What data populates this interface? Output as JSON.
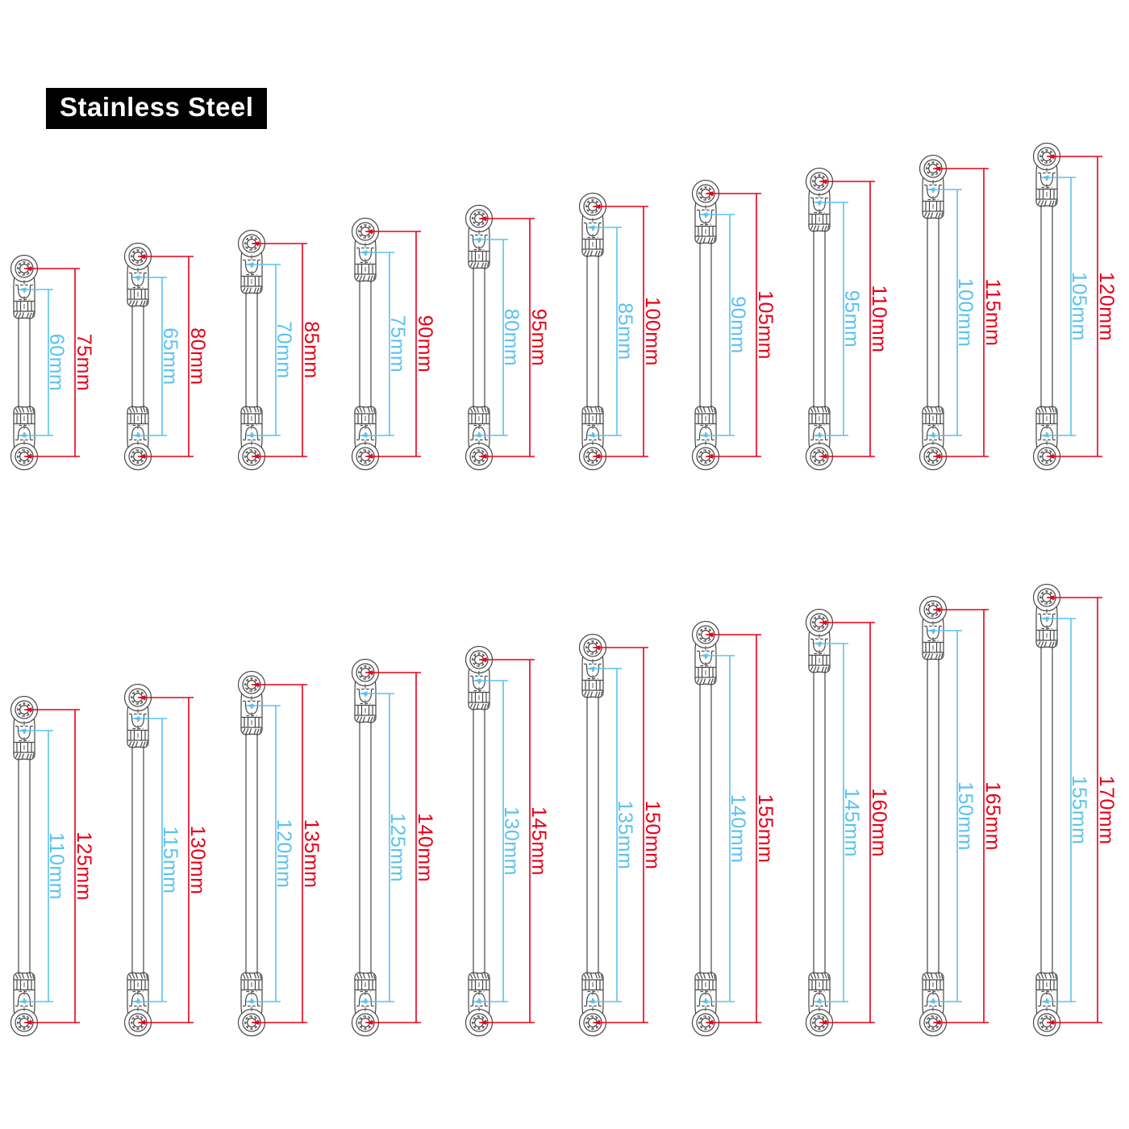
{
  "title": {
    "label": "Stainless Steel"
  },
  "unit": "mm",
  "colors": {
    "outer_dimension": "#e60019",
    "inner_dimension": "#5bc2ee",
    "drawing_line": "#474747",
    "title_bg": "#000000",
    "title_text": "#ffffff"
  },
  "rows": [
    {
      "rods": [
        {
          "outer_mm": 75,
          "inner_mm": 60,
          "outer_label": "75mm",
          "inner_label": "60mm"
        },
        {
          "outer_mm": 80,
          "inner_mm": 65,
          "outer_label": "80mm",
          "inner_label": "65mm"
        },
        {
          "outer_mm": 85,
          "inner_mm": 70,
          "outer_label": "85mm",
          "inner_label": "70mm"
        },
        {
          "outer_mm": 90,
          "inner_mm": 75,
          "outer_label": "90mm",
          "inner_label": "75mm"
        },
        {
          "outer_mm": 95,
          "inner_mm": 80,
          "outer_label": "95mm",
          "inner_label": "80mm"
        },
        {
          "outer_mm": 100,
          "inner_mm": 85,
          "outer_label": "100mm",
          "inner_label": "85mm"
        },
        {
          "outer_mm": 105,
          "inner_mm": 90,
          "outer_label": "105mm",
          "inner_label": "90mm"
        },
        {
          "outer_mm": 110,
          "inner_mm": 95,
          "outer_label": "110mm",
          "inner_label": "95mm"
        },
        {
          "outer_mm": 115,
          "inner_mm": 100,
          "outer_label": "115mm",
          "inner_label": "100mm"
        },
        {
          "outer_mm": 120,
          "inner_mm": 105,
          "outer_label": "120mm",
          "inner_label": "105mm"
        }
      ]
    },
    {
      "rods": [
        {
          "outer_mm": 125,
          "inner_mm": 110,
          "outer_label": "125mm",
          "inner_label": "110mm"
        },
        {
          "outer_mm": 130,
          "inner_mm": 115,
          "outer_label": "130mm",
          "inner_label": "115mm"
        },
        {
          "outer_mm": 135,
          "inner_mm": 120,
          "outer_label": "135mm",
          "inner_label": "120mm"
        },
        {
          "outer_mm": 140,
          "inner_mm": 125,
          "outer_label": "140mm",
          "inner_label": "125mm"
        },
        {
          "outer_mm": 145,
          "inner_mm": 130,
          "outer_label": "145mm",
          "inner_label": "130mm"
        },
        {
          "outer_mm": 150,
          "inner_mm": 135,
          "outer_label": "150mm",
          "inner_label": "135mm"
        },
        {
          "outer_mm": 155,
          "inner_mm": 140,
          "outer_label": "155mm",
          "inner_label": "140mm"
        },
        {
          "outer_mm": 160,
          "inner_mm": 145,
          "outer_label": "160mm",
          "inner_label": "145mm"
        },
        {
          "outer_mm": 165,
          "inner_mm": 150,
          "outer_label": "165mm",
          "inner_label": "150mm"
        },
        {
          "outer_mm": 170,
          "inner_mm": 155,
          "outer_label": "170mm",
          "inner_label": "155mm"
        }
      ]
    }
  ]
}
